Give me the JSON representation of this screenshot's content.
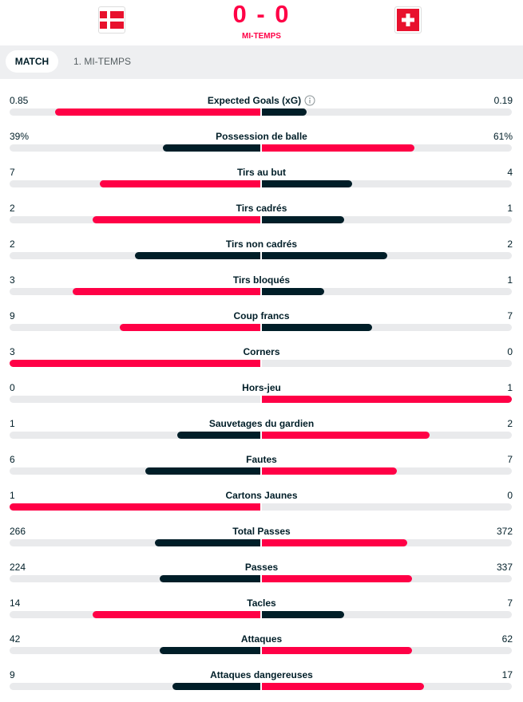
{
  "match": {
    "home_flag": "denmark-flag",
    "away_flag": "switzerland-flag",
    "score": "0 - 0",
    "status": "MI-TEMPS"
  },
  "tabs": [
    {
      "label": "MATCH",
      "active": true
    },
    {
      "label": "1. MI-TEMPS",
      "active": false
    }
  ],
  "colors": {
    "accent": "#ff0046",
    "dark": "#001e28",
    "track": "#e9eaec"
  },
  "stats": [
    {
      "label": "Expected Goals (xG)",
      "home": "0.85",
      "away": "0.19",
      "home_share": 0.82,
      "away_share": 0.18,
      "info": true
    },
    {
      "label": "Possession de balle",
      "home": "39%",
      "away": "61%",
      "home_share": 0.39,
      "away_share": 0.61
    },
    {
      "label": "Tirs au but",
      "home": "7",
      "away": "4",
      "home_share": 0.64,
      "away_share": 0.36
    },
    {
      "label": "Tirs cadrés",
      "home": "2",
      "away": "1",
      "home_share": 0.67,
      "away_share": 0.33
    },
    {
      "label": "Tirs non cadrés",
      "home": "2",
      "away": "2",
      "home_share": 0.5,
      "away_share": 0.5
    },
    {
      "label": "Tirs bloqués",
      "home": "3",
      "away": "1",
      "home_share": 0.75,
      "away_share": 0.25
    },
    {
      "label": "Coup francs",
      "home": "9",
      "away": "7",
      "home_share": 0.56,
      "away_share": 0.44
    },
    {
      "label": "Corners",
      "home": "3",
      "away": "0",
      "home_share": 1.0,
      "away_share": 0.0
    },
    {
      "label": "Hors-jeu",
      "home": "0",
      "away": "1",
      "home_share": 0.0,
      "away_share": 1.0
    },
    {
      "label": "Sauvetages du gardien",
      "home": "1",
      "away": "2",
      "home_share": 0.33,
      "away_share": 0.67
    },
    {
      "label": "Fautes",
      "home": "6",
      "away": "7",
      "home_share": 0.46,
      "away_share": 0.54
    },
    {
      "label": "Cartons Jaunes",
      "home": "1",
      "away": "0",
      "home_share": 1.0,
      "away_share": 0.0
    },
    {
      "label": "Total Passes",
      "home": "266",
      "away": "372",
      "home_share": 0.42,
      "away_share": 0.58
    },
    {
      "label": "Passes",
      "home": "224",
      "away": "337",
      "home_share": 0.4,
      "away_share": 0.6
    },
    {
      "label": "Tacles",
      "home": "14",
      "away": "7",
      "home_share": 0.67,
      "away_share": 0.33
    },
    {
      "label": "Attaques",
      "home": "42",
      "away": "62",
      "home_share": 0.4,
      "away_share": 0.6
    },
    {
      "label": "Attaques dangereuses",
      "home": "9",
      "away": "17",
      "home_share": 0.35,
      "away_share": 0.65
    }
  ]
}
